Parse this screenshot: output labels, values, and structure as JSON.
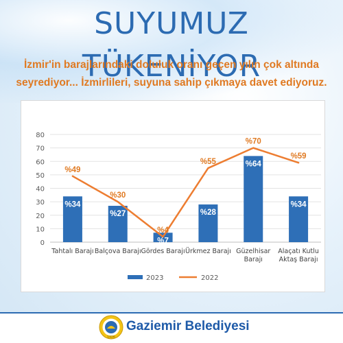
{
  "header": {
    "headline": "SUYUMUZ TÜKENİYOR",
    "subtitle_line1": "İzmir'in barajlarındaki doluluk oranı geçen yılın çok altında",
    "subtitle_line2": "seyrediyor... İzmirlileri, suyuna sahip çıkmaya davet ediyoruz."
  },
  "footer": {
    "brand": "Gaziemir Belediyesi",
    "logo_year": "1926",
    "logo_icon": "municipality-seal-icon"
  },
  "colors": {
    "title": "#2c6bb2",
    "subtitle": "#e07a22",
    "bar_2023": "#2e6fb7",
    "line_2022": "#ed7d31",
    "label_2022": "#e07a22",
    "brand": "#1e5aa8"
  },
  "chart_data": {
    "type": "bar",
    "categories": [
      [
        "Tahtalı Barajı"
      ],
      [
        "Balçova Barajı"
      ],
      [
        "Gördes Barajı"
      ],
      [
        "Ürkmez Barajı"
      ],
      [
        "Güzelhisar",
        "Barajı"
      ],
      [
        "Alaçatı Kutlu",
        "Aktaş Barajı"
      ]
    ],
    "ylim": [
      0,
      80
    ],
    "yticks": [
      0,
      10,
      20,
      30,
      40,
      50,
      60,
      70,
      80
    ],
    "grid": true,
    "legend_position": "bottom",
    "series": [
      {
        "name": "2023",
        "kind": "bar",
        "values": [
          34,
          27,
          7,
          28,
          64,
          34
        ],
        "labels": [
          "%34",
          "%27",
          "%7",
          "%28",
          "%64",
          "%34"
        ]
      },
      {
        "name": "2022",
        "kind": "line",
        "values": [
          49,
          30,
          4,
          55,
          70,
          59
        ],
        "labels": [
          "%49",
          "%30",
          "%4",
          "%55",
          "%70",
          "%59"
        ]
      }
    ]
  }
}
